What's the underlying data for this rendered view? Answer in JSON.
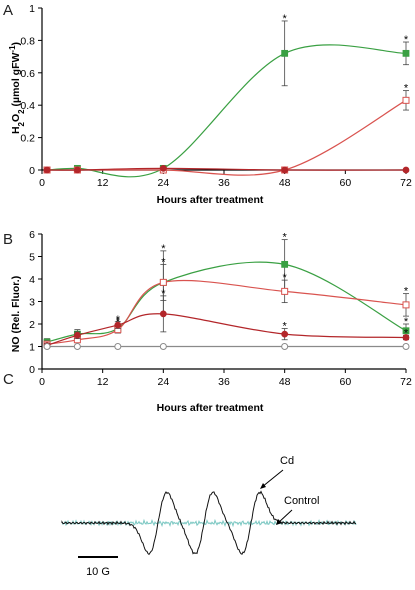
{
  "panels": {
    "a": {
      "letter": "A"
    },
    "b": {
      "letter": "B"
    },
    "c": {
      "letter": "C",
      "cd_label": "Cd",
      "control_label": "Control",
      "scale_label": "10 G"
    }
  },
  "colors": {
    "green": "#3aa043",
    "red_open": "#d9534f",
    "red_dark": "#b3262a",
    "grey": "#8a8a8a",
    "cd_trace": "#111111",
    "control_trace": "#7fc9c4"
  },
  "chart_data": [
    {
      "type": "line",
      "xlabel": "Hours after treatment",
      "ylabel_parts": [
        "H",
        "2",
        "O",
        "2",
        " (µmol gFW",
        "-1",
        ")"
      ],
      "xlim": [
        0,
        72
      ],
      "ylim": [
        0,
        1
      ],
      "xticks": [
        0,
        12,
        24,
        36,
        48,
        60,
        72
      ],
      "yticks": [
        0,
        0.2,
        0.4,
        0.6,
        0.8,
        1
      ],
      "ytick_labels": [
        "0",
        "0.2",
        "0.4",
        "0.6",
        "0.8",
        "1"
      ],
      "series": [
        {
          "color_key": "green",
          "marker": "filled-square",
          "x": [
            1,
            7,
            24,
            48,
            72
          ],
          "y": [
            0,
            0.01,
            0.01,
            0.72,
            0.72
          ],
          "err": [
            0,
            0,
            0,
            0.2,
            0.07
          ],
          "star": [
            false,
            false,
            false,
            true,
            true
          ]
        },
        {
          "color_key": "red_open",
          "marker": "open-square",
          "x": [
            1,
            7,
            24,
            48,
            72
          ],
          "y": [
            0,
            0,
            0,
            0,
            0.43
          ],
          "err": [
            0,
            0,
            0,
            0,
            0.06
          ],
          "star": [
            false,
            false,
            false,
            false,
            true
          ]
        },
        {
          "color_key": "red_dark",
          "marker": "filled-circle",
          "x": [
            1,
            7,
            24,
            48,
            72
          ],
          "y": [
            0,
            0,
            0.01,
            0,
            0
          ],
          "err": [
            0,
            0,
            0,
            0,
            0
          ],
          "star": [
            false,
            false,
            false,
            false,
            false
          ]
        }
      ]
    },
    {
      "type": "line",
      "xlabel": "Hours after treatment",
      "ylabel": "NO (Rel. Fluor.)",
      "xlim": [
        0,
        72
      ],
      "ylim": [
        0,
        6
      ],
      "xticks": [
        0,
        12,
        24,
        36,
        48,
        60,
        72
      ],
      "yticks": [
        0,
        1,
        2,
        3,
        4,
        5,
        6
      ],
      "series": [
        {
          "color_key": "green",
          "marker": "filled-square",
          "x": [
            1,
            7,
            15,
            24,
            48,
            72
          ],
          "y": [
            1.2,
            1.55,
            1.8,
            3.85,
            4.65,
            1.7
          ],
          "err": [
            0.15,
            0.2,
            0.2,
            1.4,
            1.1,
            0.3
          ],
          "star": [
            false,
            false,
            true,
            true,
            true,
            true
          ]
        },
        {
          "color_key": "red_open",
          "marker": "open-square",
          "x": [
            1,
            7,
            15,
            24,
            48,
            72
          ],
          "y": [
            1.1,
            1.3,
            1.75,
            3.85,
            3.45,
            2.85
          ],
          "err": [
            0.15,
            0.1,
            0.15,
            0.8,
            0.5,
            0.5
          ],
          "star": [
            false,
            false,
            true,
            true,
            true,
            true
          ]
        },
        {
          "color_key": "red_dark",
          "marker": "filled-circle",
          "x": [
            1,
            7,
            15,
            24,
            48,
            72
          ],
          "y": [
            1.05,
            1.5,
            1.95,
            2.45,
            1.55,
            1.4
          ],
          "err": [
            0.1,
            0.15,
            0.15,
            0.8,
            0.25,
            0.1
          ],
          "star": [
            false,
            false,
            true,
            true,
            true,
            true
          ]
        },
        {
          "color_key": "grey",
          "marker": "open-circle",
          "x": [
            1,
            7,
            15,
            24,
            48,
            72
          ],
          "y": [
            1,
            1,
            1,
            1,
            1,
            1
          ],
          "err": [
            0,
            0,
            0,
            0,
            0,
            0
          ],
          "star": [
            false,
            false,
            false,
            false,
            false,
            false
          ]
        }
      ]
    }
  ]
}
